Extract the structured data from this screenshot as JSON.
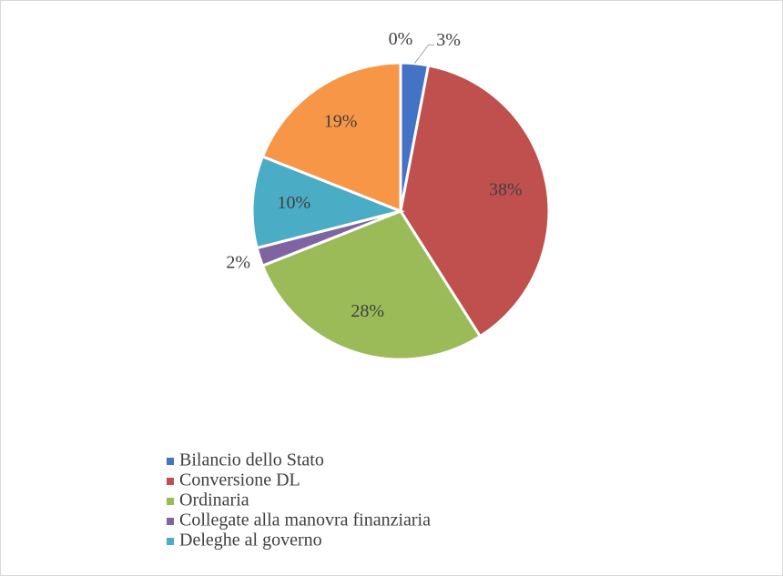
{
  "chart_data": {
    "type": "pie",
    "categories": [
      "Bilancio dello Stato",
      "Conversione DL",
      "Ordinaria",
      "Collegate alla manovra finanziaria",
      "Deleghe al governo",
      null,
      null
    ],
    "values": [
      3,
      38,
      28,
      2,
      10,
      19,
      0
    ],
    "value_labels": [
      "3%",
      "38%",
      "28%",
      "2%",
      "10%",
      "19%",
      "0%"
    ],
    "colors": [
      "#4472c4",
      "#c0504d",
      "#9bbb59",
      "#8064a2",
      "#4bacc6",
      "#f79646",
      "#2c4d75"
    ],
    "legend": "bottom-left"
  }
}
